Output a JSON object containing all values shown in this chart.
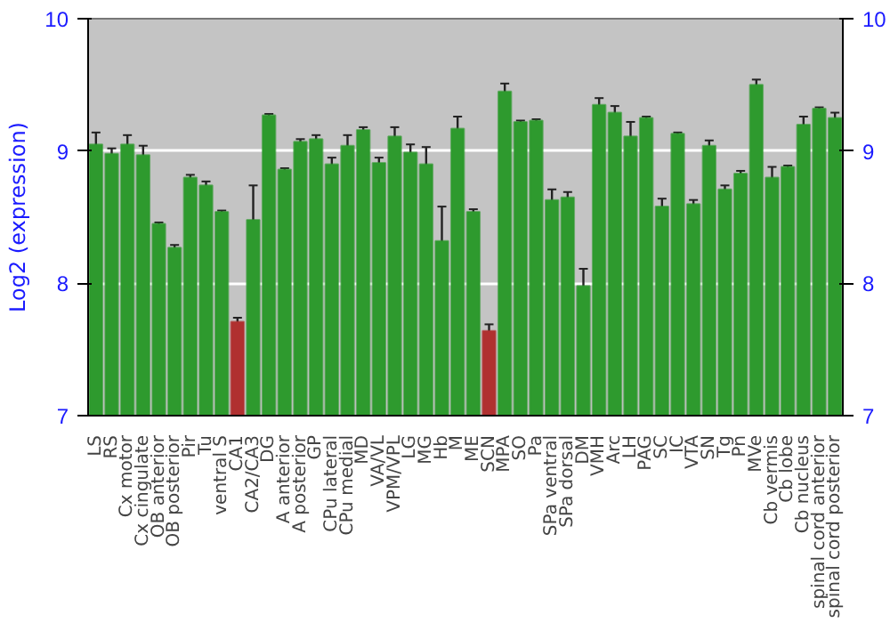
{
  "chart_data": {
    "type": "bar",
    "ylabel": "Log2 (expression)",
    "categories": [
      "LS",
      "RS",
      "Cx motor",
      "Cx cingulate",
      "OB anterior",
      "OB posterior",
      "Pir",
      "Tu",
      "ventral S",
      "CA1",
      "CA2/CA3",
      "DG",
      "A anterior",
      "A posterior",
      "GP",
      "CPu lateral",
      "CPu medial",
      "MD",
      "VA/VL",
      "VPM/VPL",
      "LG",
      "MG",
      "Hb",
      "M",
      "ME",
      "SCN",
      "MPA",
      "SO",
      "Pa",
      "SPa ventral",
      "SPa dorsal",
      "DM",
      "VMH",
      "Arc",
      "LH",
      "PAG",
      "SC",
      "IC",
      "VTA",
      "SN",
      "Tg",
      "Pn",
      "MVe",
      "Cb vermis",
      "Cb lobe",
      "Cb nucleus",
      "spinal cord anterior",
      "spinal cord posterior"
    ],
    "values": [
      9.05,
      8.98,
      9.05,
      8.97,
      8.45,
      8.27,
      8.8,
      8.74,
      8.54,
      7.71,
      8.48,
      9.27,
      8.86,
      9.07,
      9.09,
      8.9,
      9.04,
      9.16,
      8.91,
      9.11,
      8.99,
      8.9,
      8.32,
      9.17,
      8.54,
      7.64,
      9.45,
      9.22,
      9.23,
      8.63,
      8.65,
      7.98,
      9.35,
      9.29,
      9.11,
      9.25,
      8.58,
      9.13,
      8.6,
      9.04,
      8.71,
      8.83,
      9.5,
      8.8,
      8.88,
      9.2,
      9.32,
      9.25
    ],
    "errors": [
      0.09,
      0.04,
      0.07,
      0.07,
      0.01,
      0.02,
      0.02,
      0.03,
      0.01,
      0.03,
      0.26,
      0.01,
      0.01,
      0.02,
      0.03,
      0.05,
      0.08,
      0.02,
      0.04,
      0.07,
      0.06,
      0.13,
      0.26,
      0.09,
      0.02,
      0.05,
      0.06,
      0.01,
      0.01,
      0.08,
      0.04,
      0.13,
      0.05,
      0.05,
      0.11,
      0.01,
      0.06,
      0.01,
      0.03,
      0.04,
      0.03,
      0.02,
      0.04,
      0.08,
      0.01,
      0.06,
      0.01,
      0.04
    ],
    "colors": [
      "#2e9a2e",
      "#2e9a2e",
      "#2e9a2e",
      "#2e9a2e",
      "#2e9a2e",
      "#2e9a2e",
      "#2e9a2e",
      "#2e9a2e",
      "#2e9a2e",
      "#b03030",
      "#2e9a2e",
      "#2e9a2e",
      "#2e9a2e",
      "#2e9a2e",
      "#2e9a2e",
      "#2e9a2e",
      "#2e9a2e",
      "#2e9a2e",
      "#2e9a2e",
      "#2e9a2e",
      "#2e9a2e",
      "#2e9a2e",
      "#2e9a2e",
      "#2e9a2e",
      "#2e9a2e",
      "#b03030",
      "#2e9a2e",
      "#2e9a2e",
      "#2e9a2e",
      "#2e9a2e",
      "#2e9a2e",
      "#2e9a2e",
      "#2e9a2e",
      "#2e9a2e",
      "#2e9a2e",
      "#2e9a2e",
      "#2e9a2e",
      "#2e9a2e",
      "#2e9a2e",
      "#2e9a2e",
      "#2e9a2e",
      "#2e9a2e",
      "#2e9a2e",
      "#2e9a2e",
      "#2e9a2e",
      "#2e9a2e",
      "#2e9a2e",
      "#2e9a2e"
    ],
    "ylim": [
      7,
      10
    ],
    "yticks": [
      7,
      8,
      9,
      10
    ],
    "y2lim": [
      7,
      10
    ],
    "y2ticks": [
      7,
      8,
      9,
      10
    ],
    "grid": "y"
  }
}
